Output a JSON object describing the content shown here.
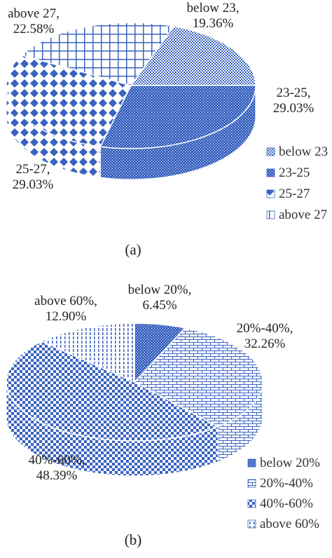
{
  "chart_data": [
    {
      "type": "pie",
      "style": "3d",
      "caption": "(a)",
      "categories": [
        "below 23",
        "23-25",
        "25-27",
        "above 27"
      ],
      "values": [
        19.36,
        29.03,
        29.03,
        22.58
      ],
      "labels": [
        [
          "below 23,",
          "19.36%"
        ],
        [
          "23-25,",
          "29.03%"
        ],
        [
          "25-27,",
          "29.03%"
        ],
        [
          "above 27,",
          "22.58%"
        ]
      ],
      "legend_labels": [
        "below 23",
        "23-25",
        "25-27",
        "above 27"
      ],
      "legend_position": "right",
      "color": "#3a63c0"
    },
    {
      "type": "pie",
      "style": "3d",
      "caption": "(b)",
      "categories": [
        "below 20%",
        "20%-40%",
        "40%-60%",
        "above 60%"
      ],
      "values": [
        6.45,
        32.26,
        48.39,
        12.9
      ],
      "labels": [
        [
          "below 20%,",
          "6.45%"
        ],
        [
          "20%-40%,",
          "32.26%"
        ],
        [
          "40%-60%,",
          "48.39%"
        ],
        [
          "above 60%,",
          "12.90%"
        ]
      ],
      "legend_labels": [
        "below 20%",
        "20%-40%",
        "40%-60%",
        "above 60%"
      ],
      "legend_position": "right",
      "color": "#3a63c0"
    }
  ]
}
